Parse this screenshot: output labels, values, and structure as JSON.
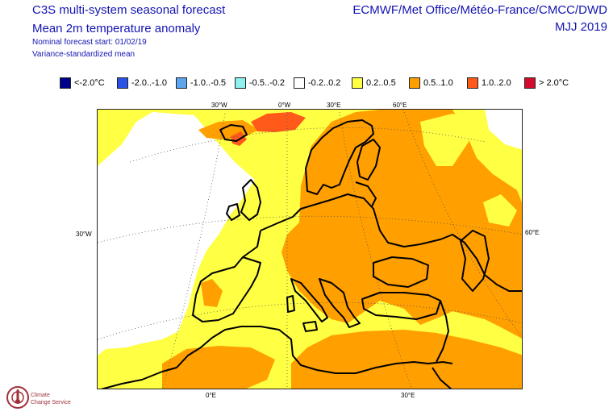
{
  "header": {
    "title_line1": "C3S multi-system seasonal forecast",
    "title_line2": "Mean 2m temperature anomaly",
    "forecast_start": "Nominal forecast start: 01/02/19",
    "method": "Variance-standardized mean",
    "centres": "ECMWF/Met Office/Météo-France/CMCC/DWD",
    "period": "MJJ 2019"
  },
  "legend": [
    {
      "label": "<-2.0°C",
      "color": "#00008b"
    },
    {
      "label": "-2.0..-1.0",
      "color": "#2a52e6"
    },
    {
      "label": "-1.0..-0.5",
      "color": "#5fa4ee"
    },
    {
      "label": "-0.5..-0.2",
      "color": "#8ff0f0"
    },
    {
      "label": "-0.2..0.2",
      "color": "#ffffff"
    },
    {
      "label": "0.2..0.5",
      "color": "#ffff44"
    },
    {
      "label": "0.5..1.0",
      "color": "#ff9f00"
    },
    {
      "label": "1.0..2.0",
      "color": "#ff5a1a"
    },
    {
      "label": "> 2.0°C",
      "color": "#d40a2c"
    }
  ],
  "map_labels": {
    "top": [
      "30°W",
      "0°W",
      "30°E",
      "60°E"
    ],
    "left": "30°W",
    "right": "60°E",
    "bottom": [
      "0°E",
      "30°E"
    ]
  },
  "logo": {
    "line1": "Climate",
    "line2": "Change Service"
  }
}
